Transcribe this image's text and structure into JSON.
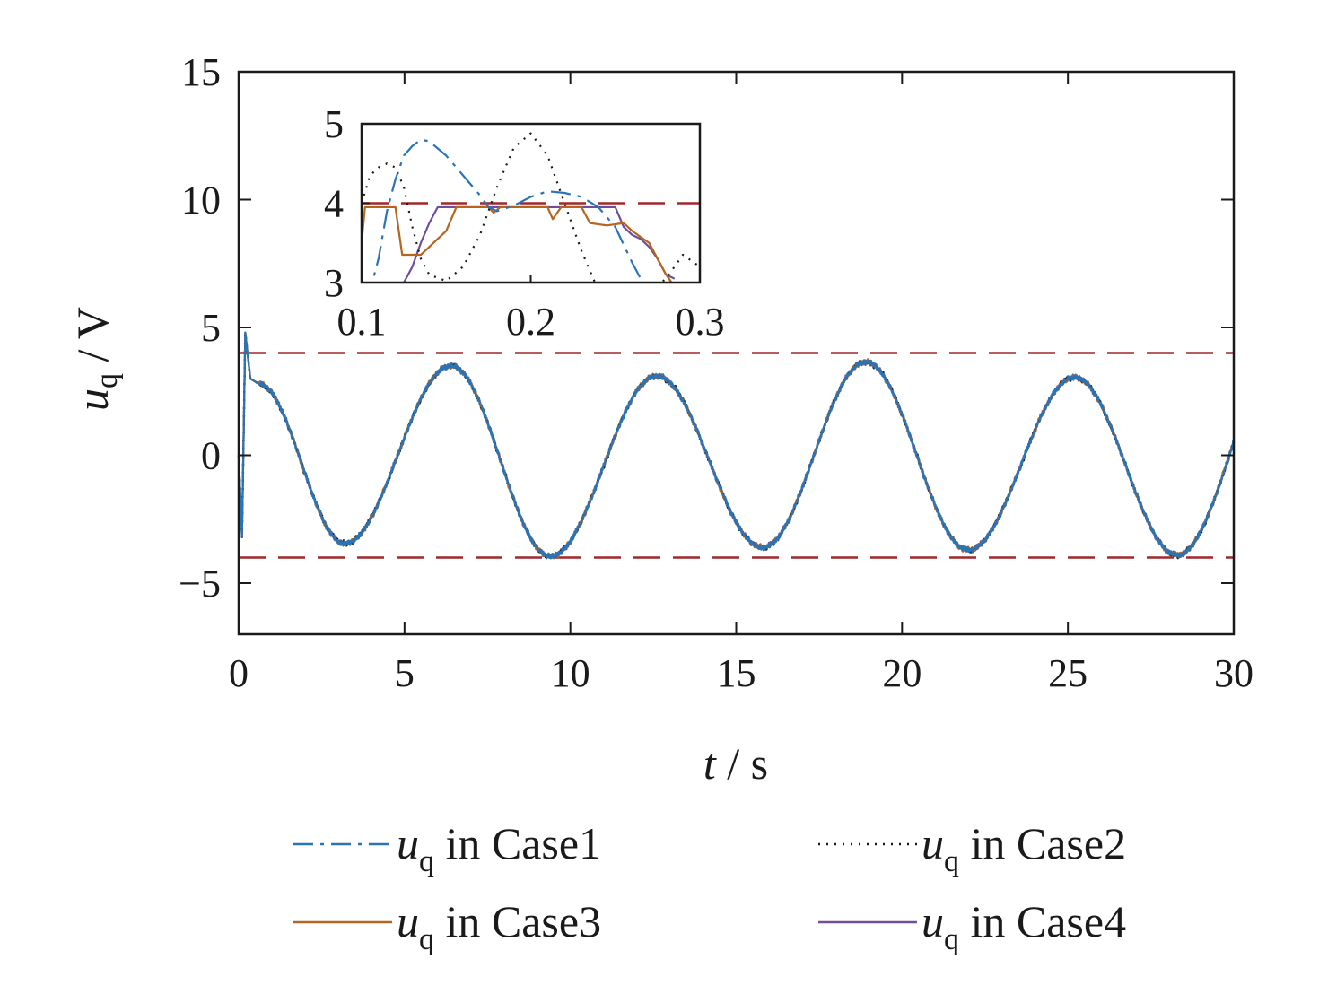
{
  "chart_data": {
    "type": "line",
    "xlabel": {
      "var": "t",
      "sep": " / ",
      "unit": "s"
    },
    "ylabel": {
      "var": "u",
      "sub": "q",
      "sep": " / ",
      "unit": "V"
    },
    "xlim": [
      0,
      30
    ],
    "ylim": [
      -7,
      15
    ],
    "xticks": [
      0,
      5,
      10,
      15,
      20,
      25,
      30
    ],
    "yticks": [
      -5,
      0,
      5,
      10,
      15
    ],
    "ytick_labels": [
      "−5",
      "0",
      "5",
      "10",
      "15"
    ],
    "grid": false,
    "limits": [
      4,
      -4
    ],
    "limit_color": "#a0282d",
    "signal": {
      "description_free": true,
      "sine_period": 6.28,
      "peaks": [
        {
          "t": 6.4,
          "u": 3.5
        },
        {
          "t": 12.6,
          "u": 3.1
        },
        {
          "t": 18.9,
          "u": 3.65
        },
        {
          "t": 25.2,
          "u": 3.05
        }
      ],
      "troughs": [
        {
          "t": 3.2,
          "u": -3.45
        },
        {
          "t": 9.4,
          "u": -3.95
        },
        {
          "t": 15.8,
          "u": -3.6
        },
        {
          "t": 22.0,
          "u": -3.7
        },
        {
          "t": 28.3,
          "u": -3.9
        }
      ],
      "start": [
        {
          "t": 0.0,
          "u": 0.0
        },
        {
          "t": 0.1,
          "u": -3.2
        },
        {
          "t": 0.2,
          "u": 4.8
        },
        {
          "t": 0.35,
          "u": 3.0
        },
        {
          "t": 0.6,
          "u": 2.8
        }
      ],
      "end": {
        "t": 30,
        "u": 0.3
      }
    },
    "series": [
      {
        "name_var": "u",
        "name_sub": "q",
        "name_rest": " in Case1",
        "color": "#2a74b3",
        "style": "dashdot"
      },
      {
        "name_var": "u",
        "name_sub": "q",
        "name_rest": " in Case2",
        "color": "#1a1a1a",
        "style": "dotted"
      },
      {
        "name_var": "u",
        "name_sub": "q",
        "name_rest": " in Case3",
        "color": "#b5651d",
        "style": "solid"
      },
      {
        "name_var": "u",
        "name_sub": "q",
        "name_rest": " in Case4",
        "color": "#6f4e9c",
        "style": "solid"
      }
    ],
    "legend_position": "bottom",
    "inset": {
      "xlim": [
        0.1,
        0.3
      ],
      "ylim": [
        3,
        5
      ],
      "xticks": [
        0.1,
        0.2,
        0.3
      ],
      "yticks": [
        3,
        4,
        5
      ],
      "series": {
        "Case1": [
          [
            0.1,
            3.0
          ],
          [
            0.105,
            2.9
          ],
          [
            0.11,
            3.3
          ],
          [
            0.115,
            3.9
          ],
          [
            0.12,
            4.3
          ],
          [
            0.125,
            4.6
          ],
          [
            0.13,
            4.72
          ],
          [
            0.135,
            4.8
          ],
          [
            0.14,
            4.78
          ],
          [
            0.15,
            4.6
          ],
          [
            0.16,
            4.35
          ],
          [
            0.17,
            4.1
          ],
          [
            0.175,
            3.95
          ],
          [
            0.18,
            3.9
          ],
          [
            0.19,
            3.97
          ],
          [
            0.2,
            4.08
          ],
          [
            0.21,
            4.15
          ],
          [
            0.22,
            4.13
          ],
          [
            0.23,
            4.08
          ],
          [
            0.24,
            3.95
          ],
          [
            0.25,
            3.7
          ],
          [
            0.26,
            3.25
          ],
          [
            0.27,
            2.85
          ]
        ],
        "Case2": [
          [
            0.1,
            4.0
          ],
          [
            0.105,
            4.35
          ],
          [
            0.11,
            4.45
          ],
          [
            0.115,
            4.5
          ],
          [
            0.12,
            4.45
          ],
          [
            0.125,
            4.2
          ],
          [
            0.13,
            3.7
          ],
          [
            0.135,
            3.3
          ],
          [
            0.14,
            3.1
          ],
          [
            0.15,
            3.02
          ],
          [
            0.16,
            3.2
          ],
          [
            0.17,
            3.6
          ],
          [
            0.18,
            4.2
          ],
          [
            0.19,
            4.7
          ],
          [
            0.2,
            4.88
          ],
          [
            0.21,
            4.6
          ],
          [
            0.22,
            4.0
          ],
          [
            0.23,
            3.4
          ],
          [
            0.24,
            2.9
          ],
          [
            0.26,
            2.7
          ],
          [
            0.28,
            3.05
          ],
          [
            0.29,
            3.35
          ],
          [
            0.3,
            3.2
          ]
        ],
        "Case3": [
          [
            0.1,
            3.5
          ],
          [
            0.102,
            3.95
          ],
          [
            0.12,
            3.95
          ],
          [
            0.124,
            3.35
          ],
          [
            0.135,
            3.35
          ],
          [
            0.14,
            3.45
          ],
          [
            0.15,
            3.65
          ],
          [
            0.156,
            3.95
          ],
          [
            0.175,
            3.95
          ],
          [
            0.178,
            3.88
          ],
          [
            0.182,
            3.95
          ],
          [
            0.21,
            3.95
          ],
          [
            0.213,
            3.8
          ],
          [
            0.218,
            3.95
          ],
          [
            0.23,
            3.95
          ],
          [
            0.235,
            3.75
          ],
          [
            0.245,
            3.72
          ],
          [
            0.255,
            3.75
          ],
          [
            0.26,
            3.65
          ],
          [
            0.27,
            3.5
          ],
          [
            0.275,
            3.3
          ],
          [
            0.28,
            3.1
          ],
          [
            0.285,
            2.95
          ]
        ],
        "Case4": [
          [
            0.125,
            3.0
          ],
          [
            0.13,
            3.2
          ],
          [
            0.135,
            3.5
          ],
          [
            0.14,
            3.75
          ],
          [
            0.145,
            3.95
          ],
          [
            0.15,
            3.95
          ],
          [
            0.2,
            3.95
          ],
          [
            0.25,
            3.95
          ],
          [
            0.255,
            3.7
          ],
          [
            0.26,
            3.6
          ],
          [
            0.265,
            3.55
          ],
          [
            0.27,
            3.45
          ],
          [
            0.275,
            3.3
          ],
          [
            0.28,
            3.1
          ],
          [
            0.285,
            3.05
          ]
        ]
      }
    }
  }
}
